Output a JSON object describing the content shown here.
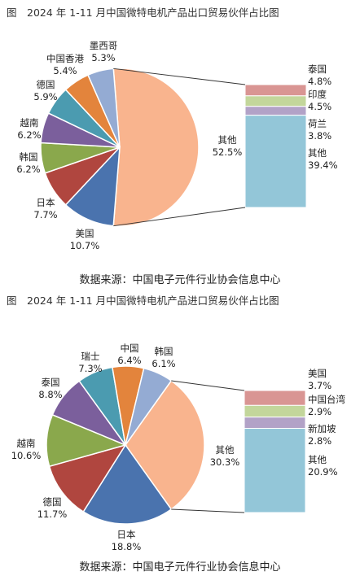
{
  "chart_data": [
    {
      "type": "pie",
      "title": "图　2024 年 1-11 月中国微特电机产品出口贸易伙伴占比图",
      "source": "数据来源：中国电子元件行业协会信息中心",
      "slices": [
        {
          "name": "其他",
          "value": 52.5,
          "color": "#f9b48e"
        },
        {
          "name": "美国",
          "value": 10.7,
          "color": "#4a73ae"
        },
        {
          "name": "日本",
          "value": 7.7,
          "color": "#b0463f"
        },
        {
          "name": "韩国",
          "value": 6.2,
          "color": "#8aa84c"
        },
        {
          "name": "越南",
          "value": 6.2,
          "color": "#7b5f9c"
        },
        {
          "name": "德国",
          "value": 5.9,
          "color": "#4b9bb0"
        },
        {
          "name": "中国香港",
          "value": 5.4,
          "color": "#e3843c"
        },
        {
          "name": "墨西哥",
          "value": 5.3,
          "color": "#94abd3"
        }
      ],
      "breakdown": [
        {
          "name": "泰国",
          "value": 4.8,
          "color": "#d99593"
        },
        {
          "name": "印度",
          "value": 4.5,
          "color": "#c3d69b"
        },
        {
          "name": "荷兰",
          "value": 3.8,
          "color": "#b2a2c7"
        },
        {
          "name": "其他",
          "value": 39.4,
          "color": "#93c6d8"
        }
      ],
      "value_unit": "%"
    },
    {
      "type": "pie",
      "title": "图　2024 年 1-11 月中国微特电机产品进口贸易伙伴占比图",
      "source": "数据来源：中国电子元件行业协会信息中心",
      "slices": [
        {
          "name": "其他",
          "value": 30.3,
          "color": "#f9b48e"
        },
        {
          "name": "日本",
          "value": 18.8,
          "color": "#4a73ae"
        },
        {
          "name": "德国",
          "value": 11.7,
          "color": "#b0463f"
        },
        {
          "name": "越南",
          "value": 10.6,
          "color": "#8aa84c"
        },
        {
          "name": "泰国",
          "value": 8.8,
          "color": "#7b5f9c"
        },
        {
          "name": "瑞士",
          "value": 7.3,
          "color": "#4b9bb0"
        },
        {
          "name": "中国",
          "value": 6.4,
          "color": "#e3843c"
        },
        {
          "name": "韩国",
          "value": 6.1,
          "color": "#94abd3"
        }
      ],
      "breakdown": [
        {
          "name": "美国",
          "value": 3.7,
          "color": "#d99593"
        },
        {
          "name": "中国台湾",
          "value": 2.9,
          "color": "#c3d69b"
        },
        {
          "name": "新加坡",
          "value": 2.8,
          "color": "#b2a2c7"
        },
        {
          "name": "其他",
          "value": 20.9,
          "color": "#93c6d8"
        }
      ],
      "value_unit": "%"
    }
  ]
}
